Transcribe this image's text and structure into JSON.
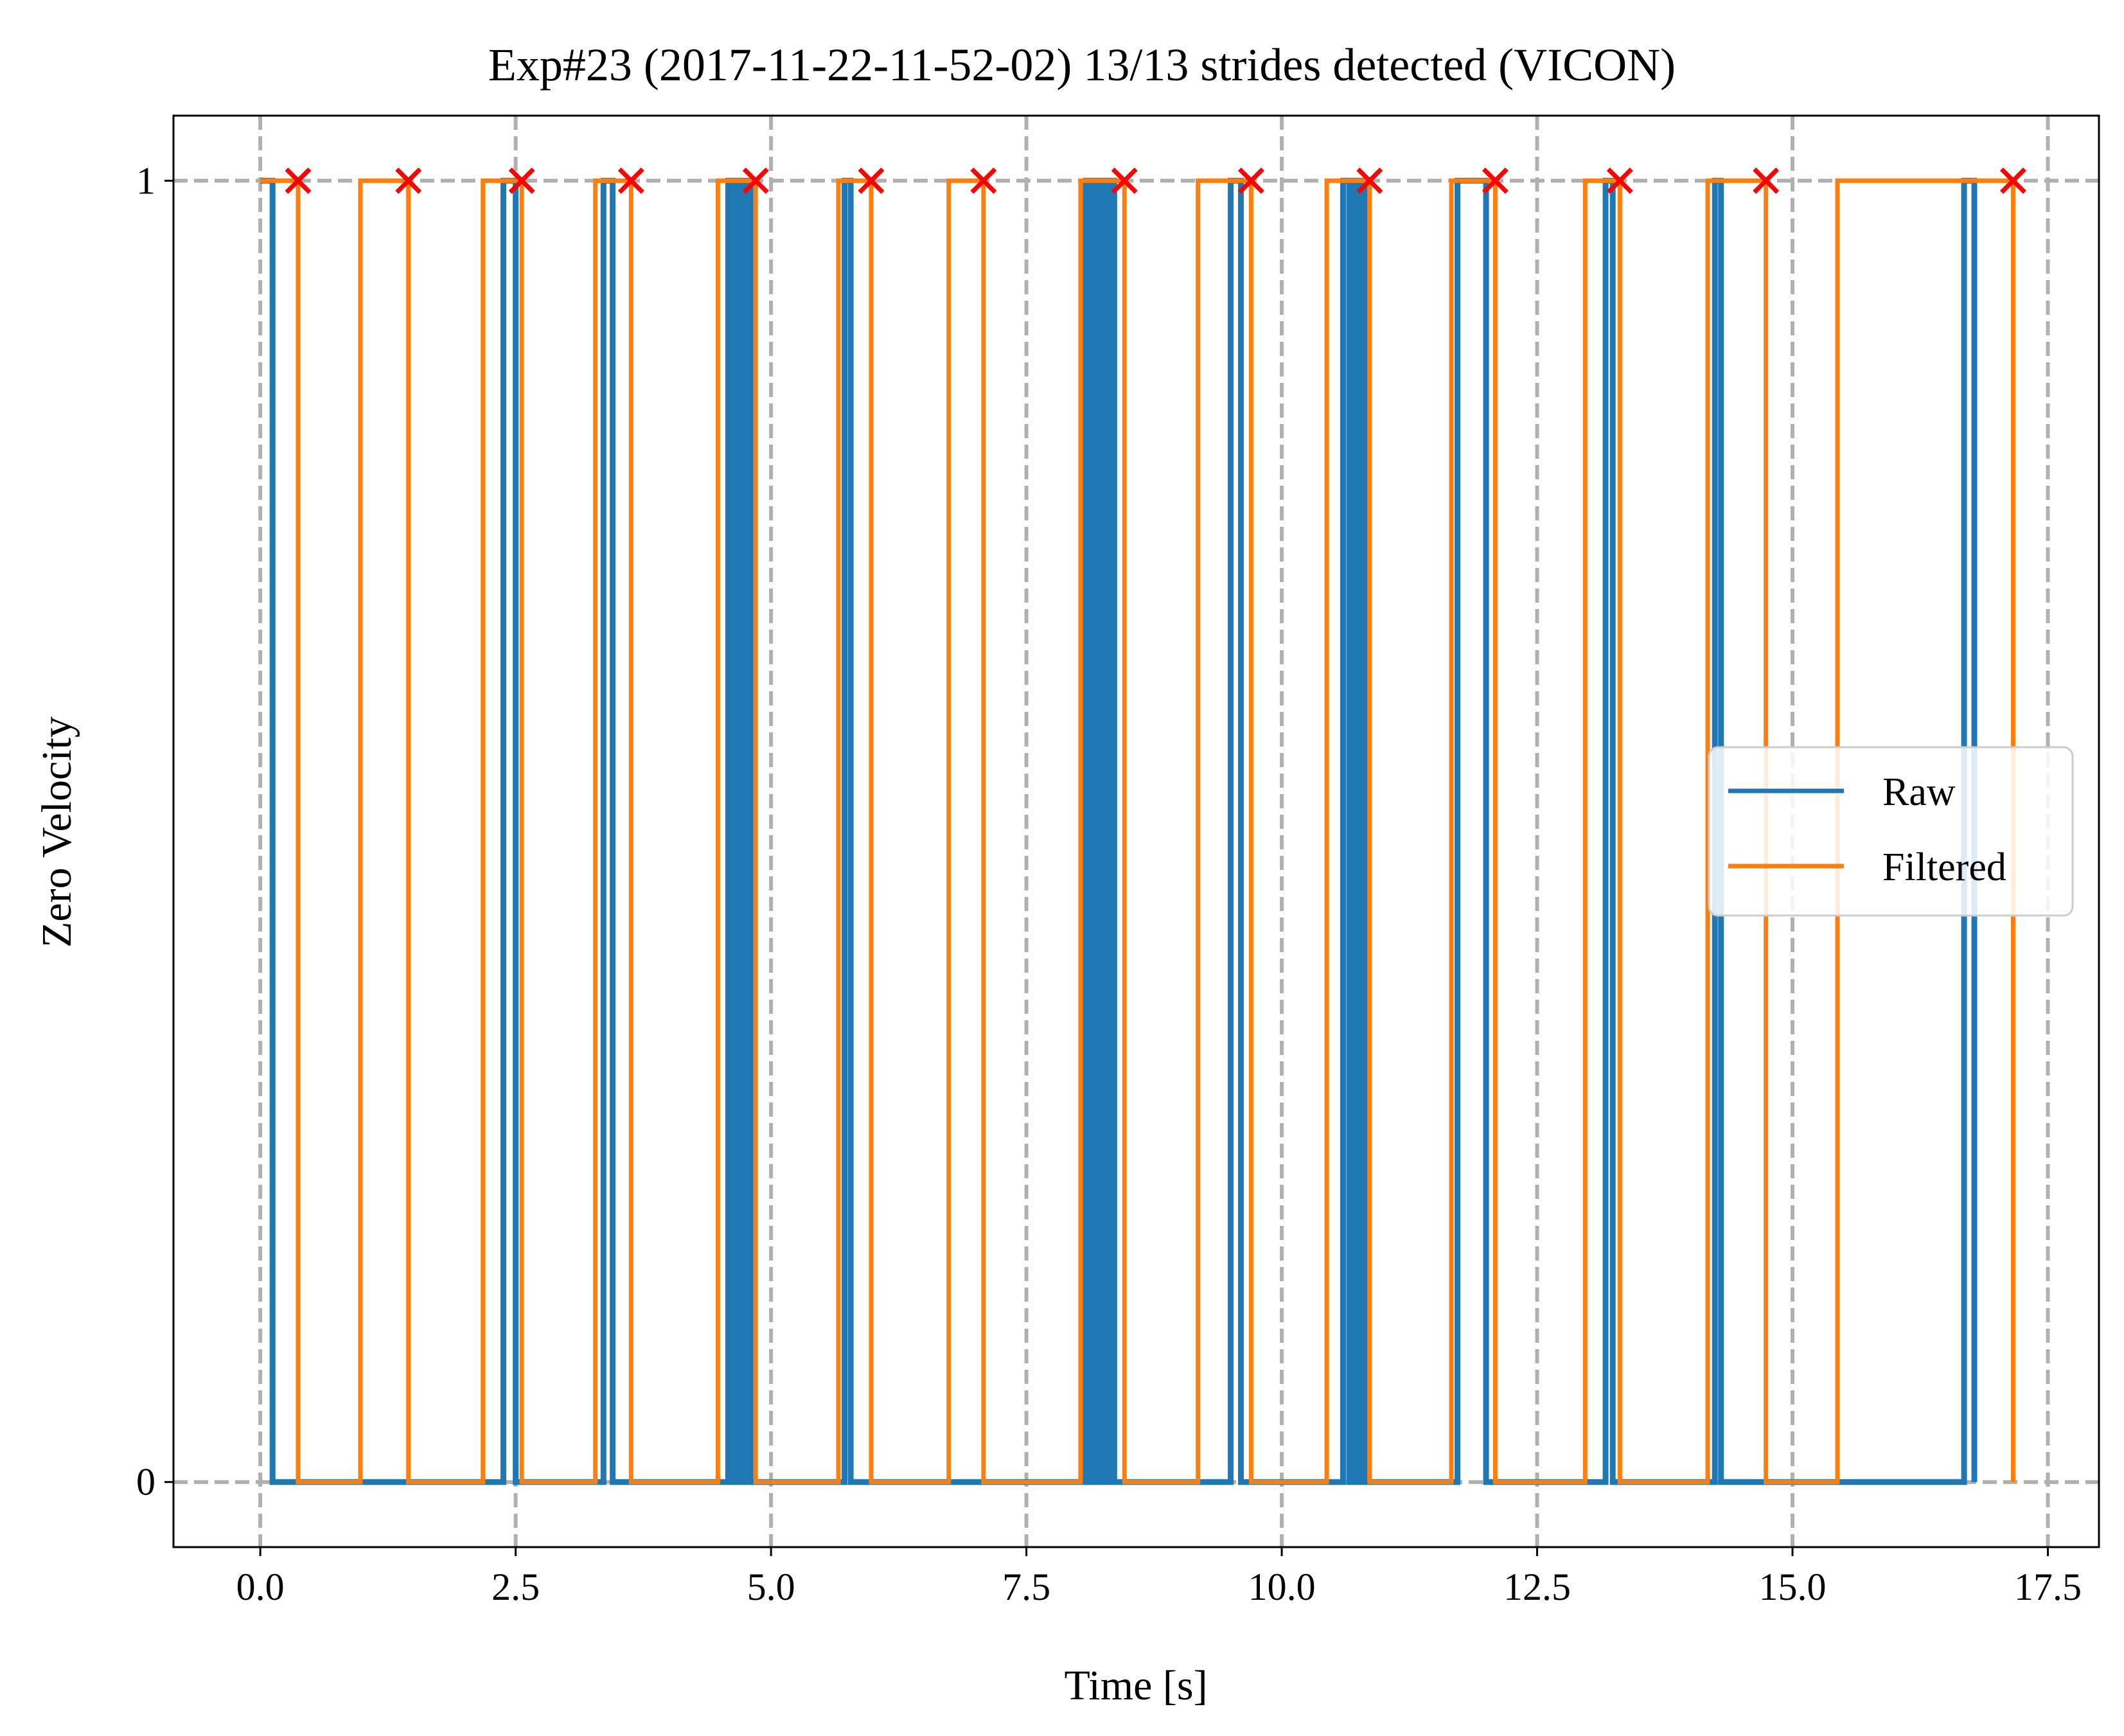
{
  "chart_data": {
    "type": "line",
    "title": "Exp#23 (2017-11-22-11-52-02) 13/13 strides detected (VICON)",
    "xlabel": "Time [s]",
    "ylabel": "Zero Velocity",
    "xlim": [
      -0.85,
      18.0
    ],
    "ylim": [
      -0.05,
      1.05
    ],
    "x_ticks": [
      0.0,
      2.5,
      5.0,
      7.5,
      10.0,
      12.5,
      15.0,
      17.5
    ],
    "x_tick_labels": [
      "0.0",
      "2.5",
      "5.0",
      "7.5",
      "10.0",
      "12.5",
      "15.0",
      "17.5"
    ],
    "y_ticks": [
      0,
      1
    ],
    "y_tick_labels": [
      "0",
      "1"
    ],
    "grid": true,
    "legend_placement": "center-right",
    "colors": {
      "raw": "#1f77b4",
      "filtered": "#ff7f0e",
      "stride_markers": "#ff0000",
      "grid": "#b0b0b0"
    },
    "series": [
      {
        "name": "Raw",
        "kind": "binary-intervals",
        "high_intervals": [
          [
            0.0,
            0.12
          ],
          [
            2.38,
            2.5
          ],
          [
            3.36,
            3.45
          ],
          [
            4.58,
            4.62
          ],
          [
            4.65,
            4.68
          ],
          [
            4.7,
            4.73
          ],
          [
            4.75,
            4.8
          ],
          [
            5.72,
            5.78
          ],
          [
            8.08,
            8.12
          ],
          [
            8.16,
            8.2
          ],
          [
            8.23,
            8.28
          ],
          [
            8.31,
            8.36
          ],
          [
            9.5,
            9.6
          ],
          [
            10.6,
            10.66
          ],
          [
            10.69,
            10.72
          ],
          [
            10.76,
            10.81
          ],
          [
            11.72,
            12.0
          ],
          [
            13.17,
            13.24
          ],
          [
            14.24,
            14.3
          ],
          [
            16.68,
            16.78
          ]
        ]
      },
      {
        "name": "Filtered",
        "kind": "binary-intervals",
        "high_intervals": [
          [
            0.0,
            0.37
          ],
          [
            0.98,
            1.45
          ],
          [
            2.18,
            2.56
          ],
          [
            3.28,
            3.63
          ],
          [
            4.48,
            4.85
          ],
          [
            5.66,
            5.98
          ],
          [
            6.74,
            7.08
          ],
          [
            8.03,
            8.46
          ],
          [
            9.18,
            9.7
          ],
          [
            10.44,
            10.86
          ],
          [
            11.66,
            12.09
          ],
          [
            12.97,
            13.31
          ],
          [
            14.17,
            14.74
          ],
          [
            15.44,
            17.16
          ]
        ]
      }
    ],
    "stride_markers": {
      "x": [
        0.37,
        1.45,
        2.56,
        3.63,
        4.85,
        5.98,
        7.08,
        8.46,
        9.7,
        10.86,
        12.09,
        13.31,
        14.74,
        17.16
      ],
      "y": 1
    },
    "legend": [
      {
        "label": "Raw",
        "color": "#1f77b4"
      },
      {
        "label": "Filtered",
        "color": "#ff7f0e"
      }
    ]
  }
}
